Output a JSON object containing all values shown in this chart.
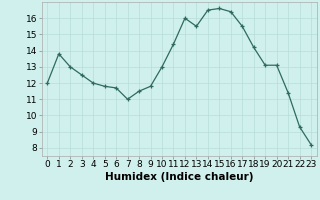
{
  "x": [
    0,
    1,
    2,
    3,
    4,
    5,
    6,
    7,
    8,
    9,
    10,
    11,
    12,
    13,
    14,
    15,
    16,
    17,
    18,
    19,
    20,
    21,
    22,
    23
  ],
  "y": [
    12.0,
    13.8,
    13.0,
    12.5,
    12.0,
    11.8,
    11.7,
    11.0,
    11.5,
    11.8,
    13.0,
    14.4,
    16.0,
    15.5,
    16.5,
    16.6,
    16.4,
    15.5,
    14.2,
    13.1,
    13.1,
    11.4,
    9.3,
    8.2
  ],
  "line_color": "#2e6b5e",
  "marker": "+",
  "marker_color": "#2e6b5e",
  "bg_color": "#cff0ec",
  "grid_color": "#b8ddd8",
  "xlabel": "Humidex (Indice chaleur)",
  "xlim": [
    -0.5,
    23.5
  ],
  "ylim": [
    7.5,
    17.0
  ],
  "yticks": [
    8,
    9,
    10,
    11,
    12,
    13,
    14,
    15,
    16
  ],
  "xticks": [
    0,
    1,
    2,
    3,
    4,
    5,
    6,
    7,
    8,
    9,
    10,
    11,
    12,
    13,
    14,
    15,
    16,
    17,
    18,
    19,
    20,
    21,
    22,
    23
  ],
  "tick_labelsize": 6.5,
  "xlabel_fontsize": 7.5
}
